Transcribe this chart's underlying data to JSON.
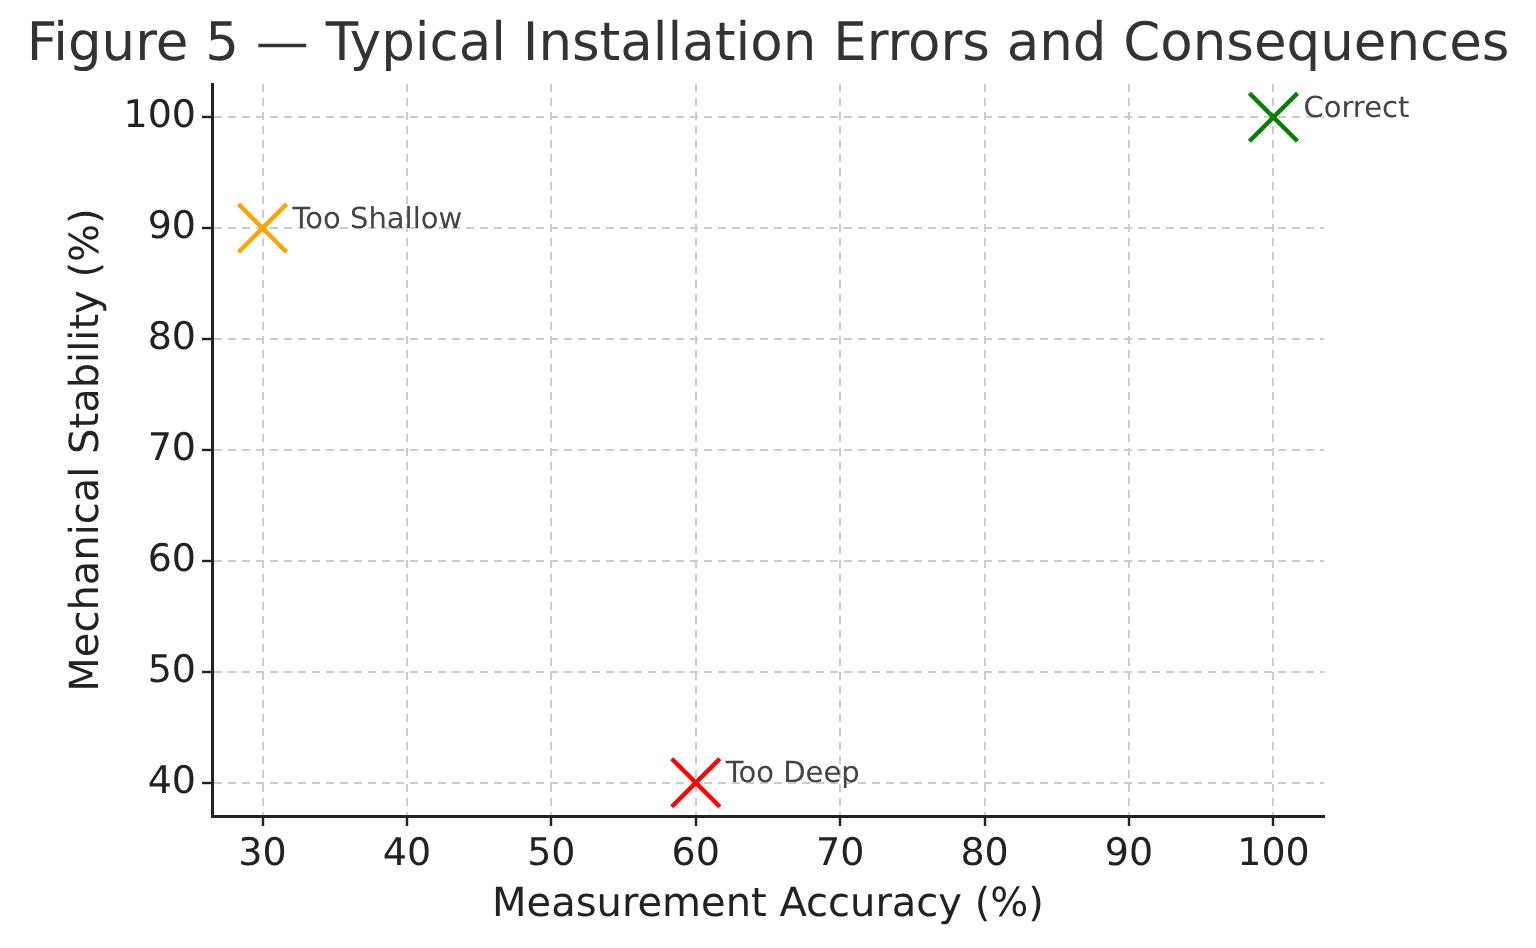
{
  "chart_data": {
    "type": "scatter",
    "title": "Figure 5 — Typical Installation Errors and Consequences",
    "xlabel": "Measurement Accuracy (%)",
    "ylabel": "Mechanical Stability (%)",
    "series": [
      {
        "name": "Too Shallow",
        "color": "#ffa500",
        "x": [
          30
        ],
        "values": [
          90
        ]
      },
      {
        "name": "Too Deep",
        "color": "#ff0000",
        "x": [
          60
        ],
        "values": [
          40
        ]
      },
      {
        "name": "Correct",
        "color": "#008000",
        "x": [
          100
        ],
        "values": [
          100
        ]
      }
    ],
    "xlim": [
      26.5,
      103.5
    ],
    "ylim": [
      37,
      103
    ],
    "xticks": [
      30,
      40,
      50,
      60,
      70,
      80,
      90,
      100
    ],
    "yticks": [
      40,
      50,
      60,
      70,
      80,
      90,
      100
    ],
    "grid": true,
    "legend": false,
    "marker": "cross"
  }
}
